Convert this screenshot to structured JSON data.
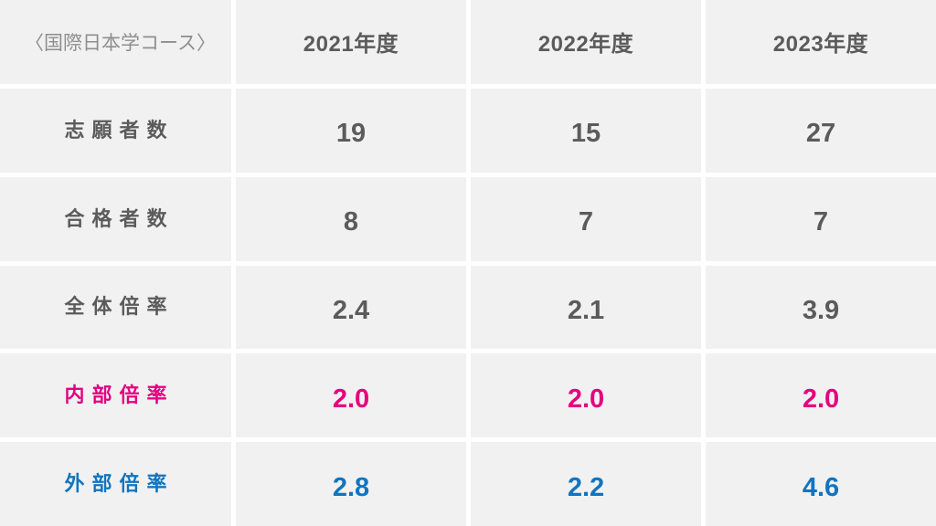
{
  "table": {
    "corner_label": "〈国際日本学コース〉",
    "columns": [
      "2021年度",
      "2022年度",
      "2023年度"
    ],
    "rows": [
      {
        "label": "志願者数",
        "values": [
          "19",
          "15",
          "27"
        ],
        "color": "default"
      },
      {
        "label": "合格者数",
        "values": [
          "8",
          "7",
          "7"
        ],
        "color": "default"
      },
      {
        "label": "全体倍率",
        "values": [
          "2.4",
          "2.1",
          "3.9"
        ],
        "color": "default"
      },
      {
        "label": "内部倍率",
        "values": [
          "2.0",
          "2.0",
          "2.0"
        ],
        "color": "pink"
      },
      {
        "label": "外部倍率",
        "values": [
          "2.8",
          "2.2",
          "4.6"
        ],
        "color": "blue"
      }
    ]
  },
  "colors": {
    "cell_background": "#f1f1f1",
    "separator": "#ffffff",
    "text_dark": "#5b5b5b",
    "text_muted": "#8e8e8e",
    "accent_pink": "#e4007f",
    "accent_blue": "#1274bf"
  },
  "chart_data": {
    "type": "table",
    "title": "〈国際日本学コース〉",
    "columns": [
      "2021年度",
      "2022年度",
      "2023年度"
    ],
    "rows": [
      {
        "label": "志願者数",
        "values": [
          19,
          15,
          27
        ]
      },
      {
        "label": "合格者数",
        "values": [
          8,
          7,
          7
        ]
      },
      {
        "label": "全体倍率",
        "values": [
          2.4,
          2.1,
          3.9
        ]
      },
      {
        "label": "内部倍率",
        "values": [
          2.0,
          2.0,
          2.0
        ]
      },
      {
        "label": "外部倍率",
        "values": [
          2.8,
          2.2,
          4.6
        ]
      }
    ],
    "layout_hints": {
      "grid": "white 5px gaps between gray cells",
      "highlight_rows": {
        "内部倍率": "pink",
        "外部倍率": "blue"
      }
    }
  }
}
